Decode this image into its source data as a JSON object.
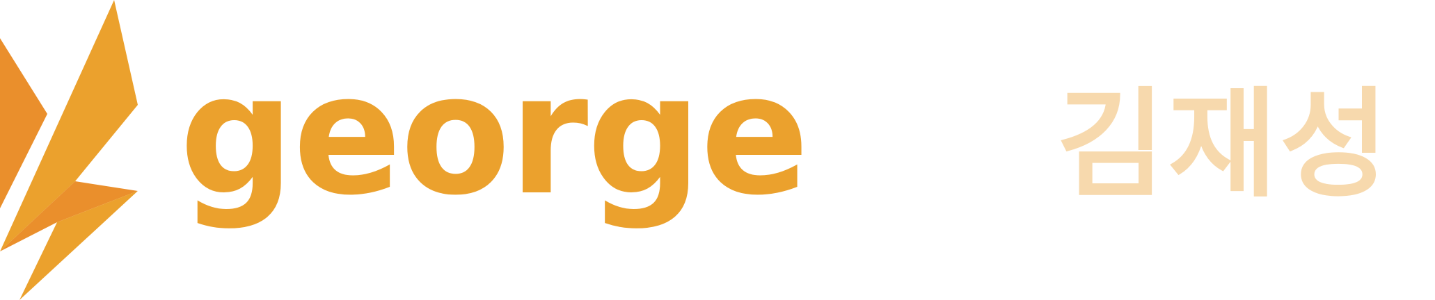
{
  "brand": {
    "wordmark": "george",
    "korean_name": "김재성"
  },
  "colors": {
    "primary": "#EBA12D",
    "secondary": "#EA8F2C",
    "light": "#F7D9AD"
  },
  "icons": {
    "mark": "abstract-bird-shard-icon"
  }
}
